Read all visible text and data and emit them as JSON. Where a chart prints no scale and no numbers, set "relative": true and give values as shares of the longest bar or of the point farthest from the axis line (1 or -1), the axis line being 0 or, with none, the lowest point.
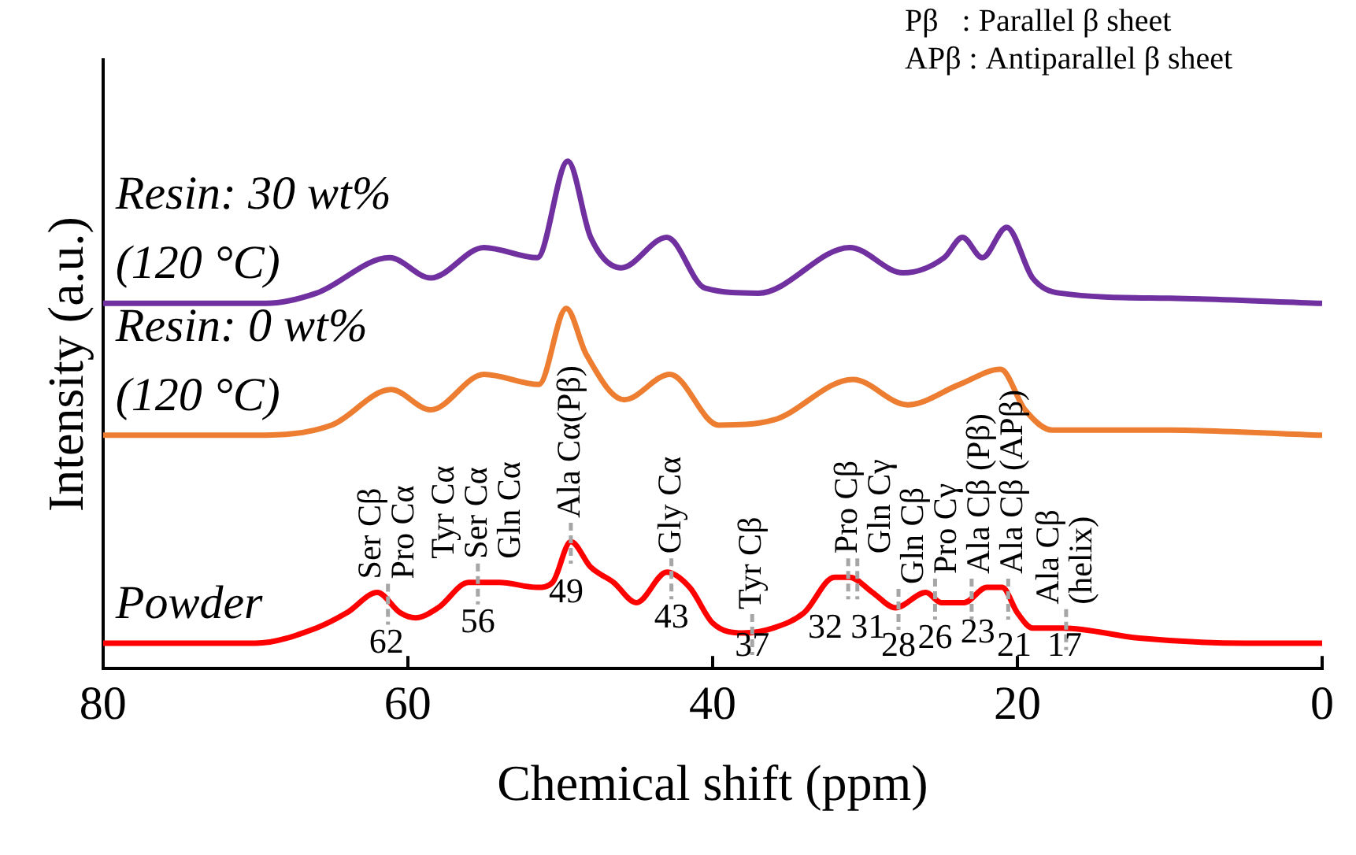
{
  "chart_data": {
    "type": "line",
    "relative": true,
    "xlabel": "Chemical shift (ppm)",
    "ylabel": "Intensity (a.u.)",
    "xlim": [
      80,
      0
    ],
    "xticks": [
      80,
      60,
      40,
      20,
      0
    ],
    "grid": false,
    "legend": false,
    "series": [
      {
        "name": "Resin: 30 wt% (120 °C)",
        "color": "#7030a0",
        "x": [
          80,
          69.3,
          66,
          61.2,
          58.5,
          55,
          51.5,
          49.5,
          48,
          46,
          43,
          40.5,
          37,
          31,
          27.5,
          24.8,
          23.6,
          22.3,
          20.7,
          19,
          17.2,
          10,
          0
        ],
        "values": [
          0.72,
          0.72,
          0.74,
          0.81,
          0.77,
          0.83,
          0.81,
          1,
          0.85,
          0.79,
          0.85,
          0.75,
          0.74,
          0.83,
          0.78,
          0.81,
          0.85,
          0.81,
          0.87,
          0.77,
          0.74,
          0.73,
          0.72
        ]
      },
      {
        "name": "Resin: 0 wt% (120 °C)",
        "color": "#ed7d31",
        "x": [
          80,
          70,
          65,
          61.1,
          58.5,
          55,
          51.4,
          49.6,
          48.3,
          45.8,
          42.8,
          39.6,
          36,
          30.8,
          27.2,
          23.8,
          21.1,
          19.5,
          17.7,
          10,
          0
        ],
        "values": [
          0.46,
          0.46,
          0.48,
          0.55,
          0.51,
          0.58,
          0.56,
          0.71,
          0.62,
          0.53,
          0.58,
          0.48,
          0.49,
          0.57,
          0.52,
          0.56,
          0.59,
          0.51,
          0.47,
          0.47,
          0.46
        ]
      },
      {
        "name": "Powder",
        "color": "#ff0000",
        "x": [
          80,
          70,
          66,
          64,
          62,
          60.5,
          59.5,
          58,
          56,
          54,
          51.5,
          50.5,
          49.3,
          48,
          46.5,
          45,
          43,
          41.5,
          40,
          38,
          36,
          34,
          32,
          31,
          29.5,
          28,
          26,
          25,
          23.5,
          22,
          21,
          20,
          19,
          17,
          12,
          5,
          0
        ],
        "values": [
          0.05,
          0.05,
          0.08,
          0.11,
          0.15,
          0.11,
          0.1,
          0.12,
          0.17,
          0.17,
          0.16,
          0.17,
          0.25,
          0.2,
          0.17,
          0.13,
          0.19,
          0.16,
          0.09,
          0.07,
          0.08,
          0.11,
          0.18,
          0.18,
          0.15,
          0.12,
          0.15,
          0.13,
          0.13,
          0.16,
          0.16,
          0.11,
          0.08,
          0.08,
          0.06,
          0.05,
          0.05
        ]
      }
    ],
    "annotations": [
      "Pβ   : Parallel β sheet",
      "APβ : Antiparallel β sheet",
      {
        "text": "Ser Cβ\nPro Cα",
        "x": 61.3,
        "y": 0.13
      },
      {
        "text": "Tyr Cα\nSer Cα\nGln Cα",
        "x": 55.4,
        "y": 0.17
      },
      {
        "text": "Ala Cα(Pβ)",
        "x": 49.3,
        "y": 0.25
      },
      {
        "text": "Gly Cα",
        "x": 42.7,
        "y": 0.18
      },
      {
        "text": "Tyr Cβ",
        "x": 37.4,
        "y": 0.07
      },
      {
        "text": "Pro Cβ",
        "x": 31.1,
        "y": 0.18
      },
      {
        "text": "Gln Cγ",
        "x": 30.5,
        "y": 0.18
      },
      {
        "text": "Gln Cβ",
        "x": 27.8,
        "y": 0.12
      },
      {
        "text": "Pro Cγ",
        "x": 25.4,
        "y": 0.14
      },
      {
        "text": "Ala Cβ (Pβ)",
        "x": 23.0,
        "y": 0.14
      },
      {
        "text": "Ala Cβ (APβ)",
        "x": 20.6,
        "y": 0.14
      },
      {
        "text": "Ala Cβ\n(helix)",
        "x": 16.8,
        "y": 0.08
      },
      {
        "text": "62",
        "x": 61.4,
        "y": 0.13
      },
      {
        "text": "56",
        "x": 55.4,
        "y": 0.17
      },
      {
        "text": "49",
        "x": 49.6,
        "y": 0.23
      },
      {
        "text": "43",
        "x": 42.7,
        "y": 0.18
      },
      {
        "text": "37",
        "x": 37.4,
        "y": 0.07
      },
      {
        "text": "32",
        "x": 32.6,
        "y": 0.16
      },
      {
        "text": "31",
        "x": 29.8,
        "y": 0.16
      },
      {
        "text": "28",
        "x": 27.8,
        "y": 0.12
      },
      {
        "text": "26",
        "x": 25.4,
        "y": 0.14
      },
      {
        "text": "23",
        "x": 22.6,
        "y": 0.15
      },
      {
        "text": "21",
        "x": 20.2,
        "y": 0.12
      },
      {
        "text": "17",
        "x": 16.9,
        "y": 0.08
      }
    ]
  }
}
